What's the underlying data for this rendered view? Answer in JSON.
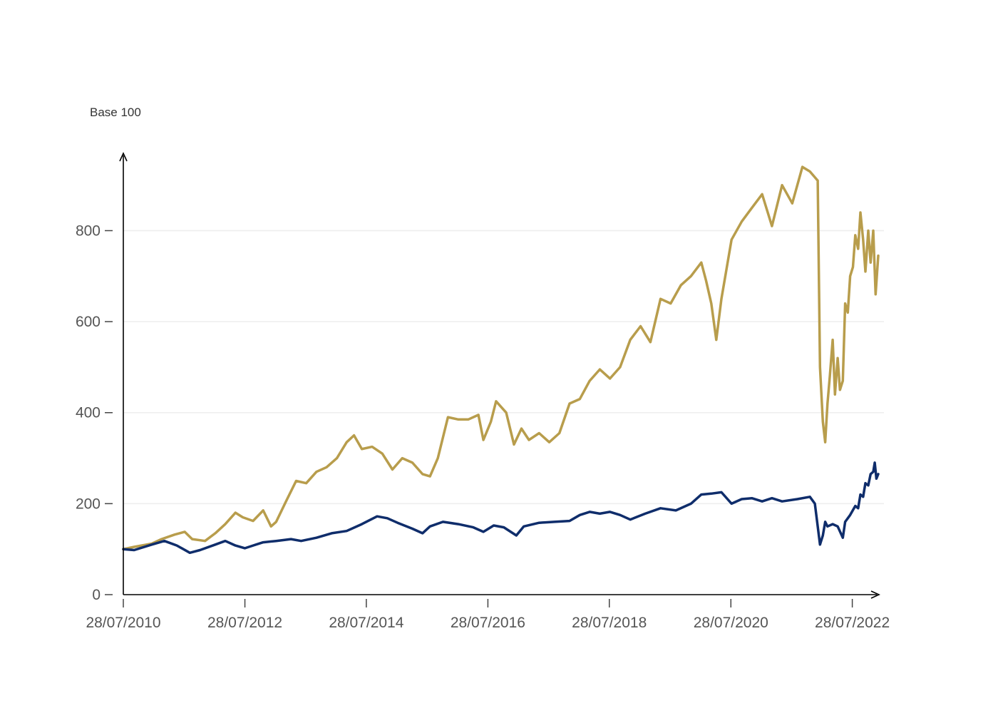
{
  "chart_data": {
    "type": "line",
    "title": "",
    "ylabel": "Base 100",
    "xlabel": "",
    "grid": true,
    "ylim": [
      0,
      970
    ],
    "yticks": [
      0,
      200,
      400,
      600,
      800
    ],
    "xlim": [
      "2010-07-28",
      "2022-12-31"
    ],
    "xticks": [
      {
        "date": "2010-07-28",
        "label": "28/07/2010"
      },
      {
        "date": "2012-07-28",
        "label": "28/07/2012"
      },
      {
        "date": "2014-07-28",
        "label": "28/07/2014"
      },
      {
        "date": "2016-07-28",
        "label": "28/07/2016"
      },
      {
        "date": "2018-07-28",
        "label": "28/07/2018"
      },
      {
        "date": "2020-07-28",
        "label": "28/07/2020"
      },
      {
        "date": "2022-07-28",
        "label": "28/07/2022"
      }
    ],
    "series": [
      {
        "color": "#b89d4c",
        "points": [
          [
            "2010-07-28",
            100
          ],
          [
            "2010-10-01",
            105
          ],
          [
            "2011-01-15",
            112
          ],
          [
            "2011-03-15",
            122
          ],
          [
            "2011-06-01",
            132
          ],
          [
            "2011-08-01",
            138
          ],
          [
            "2011-09-15",
            122
          ],
          [
            "2011-12-01",
            118
          ],
          [
            "2012-02-01",
            135
          ],
          [
            "2012-04-01",
            155
          ],
          [
            "2012-06-01",
            180
          ],
          [
            "2012-07-15",
            170
          ],
          [
            "2012-09-15",
            162
          ],
          [
            "2012-11-15",
            185
          ],
          [
            "2013-01-01",
            150
          ],
          [
            "2013-02-01",
            160
          ],
          [
            "2013-04-01",
            205
          ],
          [
            "2013-06-01",
            250
          ],
          [
            "2013-08-01",
            245
          ],
          [
            "2013-10-01",
            270
          ],
          [
            "2013-12-01",
            280
          ],
          [
            "2014-02-01",
            300
          ],
          [
            "2014-04-01",
            335
          ],
          [
            "2014-05-15",
            350
          ],
          [
            "2014-07-01",
            320
          ],
          [
            "2014-09-01",
            325
          ],
          [
            "2014-11-01",
            310
          ],
          [
            "2015-01-01",
            275
          ],
          [
            "2015-03-01",
            300
          ],
          [
            "2015-05-01",
            290
          ],
          [
            "2015-07-01",
            265
          ],
          [
            "2015-08-15",
            260
          ],
          [
            "2015-10-01",
            300
          ],
          [
            "2015-12-01",
            390
          ],
          [
            "2016-02-01",
            385
          ],
          [
            "2016-04-01",
            385
          ],
          [
            "2016-06-01",
            395
          ],
          [
            "2016-07-01",
            340
          ],
          [
            "2016-08-15",
            380
          ],
          [
            "2016-09-15",
            425
          ],
          [
            "2016-11-15",
            400
          ],
          [
            "2017-01-01",
            330
          ],
          [
            "2017-02-15",
            365
          ],
          [
            "2017-04-01",
            340
          ],
          [
            "2017-06-01",
            355
          ],
          [
            "2017-08-01",
            335
          ],
          [
            "2017-10-01",
            355
          ],
          [
            "2017-12-01",
            420
          ],
          [
            "2018-02-01",
            430
          ],
          [
            "2018-04-01",
            470
          ],
          [
            "2018-06-01",
            495
          ],
          [
            "2018-08-01",
            475
          ],
          [
            "2018-10-01",
            500
          ],
          [
            "2018-12-01",
            560
          ],
          [
            "2019-02-01",
            590
          ],
          [
            "2019-04-01",
            555
          ],
          [
            "2019-06-01",
            650
          ],
          [
            "2019-08-01",
            640
          ],
          [
            "2019-10-01",
            680
          ],
          [
            "2019-12-01",
            700
          ],
          [
            "2020-02-01",
            730
          ],
          [
            "2020-03-01",
            690
          ],
          [
            "2020-04-01",
            640
          ],
          [
            "2020-05-01",
            560
          ],
          [
            "2020-06-01",
            650
          ],
          [
            "2020-08-01",
            780
          ],
          [
            "2020-10-01",
            820
          ],
          [
            "2020-12-01",
            850
          ],
          [
            "2021-02-01",
            880
          ],
          [
            "2021-04-01",
            810
          ],
          [
            "2021-06-01",
            900
          ],
          [
            "2021-08-01",
            860
          ],
          [
            "2021-10-01",
            940
          ],
          [
            "2021-11-15",
            930
          ],
          [
            "2022-01-01",
            910
          ],
          [
            "2022-01-15",
            500
          ],
          [
            "2022-02-01",
            380
          ],
          [
            "2022-02-15",
            335
          ],
          [
            "2022-03-01",
            420
          ],
          [
            "2022-03-15",
            480
          ],
          [
            "2022-04-01",
            560
          ],
          [
            "2022-04-15",
            440
          ],
          [
            "2022-05-01",
            520
          ],
          [
            "2022-05-15",
            450
          ],
          [
            "2022-06-01",
            470
          ],
          [
            "2022-06-15",
            640
          ],
          [
            "2022-07-01",
            620
          ],
          [
            "2022-07-15",
            700
          ],
          [
            "2022-08-01",
            720
          ],
          [
            "2022-08-15",
            790
          ],
          [
            "2022-09-01",
            760
          ],
          [
            "2022-09-15",
            840
          ],
          [
            "2022-10-01",
            780
          ],
          [
            "2022-10-15",
            710
          ],
          [
            "2022-11-01",
            800
          ],
          [
            "2022-11-15",
            730
          ],
          [
            "2022-12-01",
            800
          ],
          [
            "2022-12-15",
            660
          ],
          [
            "2022-12-31",
            745
          ]
        ]
      },
      {
        "color": "#0f2d6b",
        "points": [
          [
            "2010-07-28",
            100
          ],
          [
            "2010-10-01",
            98
          ],
          [
            "2011-01-15",
            110
          ],
          [
            "2011-04-01",
            118
          ],
          [
            "2011-06-15",
            108
          ],
          [
            "2011-09-01",
            92
          ],
          [
            "2011-11-01",
            98
          ],
          [
            "2012-02-01",
            110
          ],
          [
            "2012-04-01",
            118
          ],
          [
            "2012-06-01",
            108
          ],
          [
            "2012-07-28",
            102
          ],
          [
            "2012-09-15",
            108
          ],
          [
            "2012-11-15",
            115
          ],
          [
            "2013-02-01",
            118
          ],
          [
            "2013-05-01",
            122
          ],
          [
            "2013-07-01",
            118
          ],
          [
            "2013-10-01",
            125
          ],
          [
            "2014-01-01",
            135
          ],
          [
            "2014-04-01",
            140
          ],
          [
            "2014-07-01",
            155
          ],
          [
            "2014-10-01",
            172
          ],
          [
            "2014-12-01",
            168
          ],
          [
            "2015-02-01",
            158
          ],
          [
            "2015-05-01",
            145
          ],
          [
            "2015-07-01",
            135
          ],
          [
            "2015-08-15",
            150
          ],
          [
            "2015-11-01",
            160
          ],
          [
            "2016-02-01",
            155
          ],
          [
            "2016-05-01",
            148
          ],
          [
            "2016-07-01",
            138
          ],
          [
            "2016-09-01",
            152
          ],
          [
            "2016-11-01",
            148
          ],
          [
            "2017-01-15",
            130
          ],
          [
            "2017-03-01",
            150
          ],
          [
            "2017-06-01",
            158
          ],
          [
            "2017-09-01",
            160
          ],
          [
            "2017-12-01",
            162
          ],
          [
            "2018-02-01",
            175
          ],
          [
            "2018-04-01",
            182
          ],
          [
            "2018-06-01",
            178
          ],
          [
            "2018-08-01",
            182
          ],
          [
            "2018-10-01",
            175
          ],
          [
            "2018-12-01",
            165
          ],
          [
            "2019-03-01",
            178
          ],
          [
            "2019-06-01",
            190
          ],
          [
            "2019-09-01",
            185
          ],
          [
            "2019-12-01",
            200
          ],
          [
            "2020-02-01",
            220
          ],
          [
            "2020-04-01",
            222
          ],
          [
            "2020-06-01",
            225
          ],
          [
            "2020-08-01",
            200
          ],
          [
            "2020-10-01",
            210
          ],
          [
            "2020-12-01",
            212
          ],
          [
            "2021-02-01",
            205
          ],
          [
            "2021-04-01",
            212
          ],
          [
            "2021-06-01",
            205
          ],
          [
            "2021-09-01",
            210
          ],
          [
            "2021-11-15",
            215
          ],
          [
            "2021-12-15",
            200
          ],
          [
            "2022-01-15",
            110
          ],
          [
            "2022-02-01",
            130
          ],
          [
            "2022-02-15",
            160
          ],
          [
            "2022-03-01",
            150
          ],
          [
            "2022-04-01",
            155
          ],
          [
            "2022-05-01",
            150
          ],
          [
            "2022-06-01",
            125
          ],
          [
            "2022-06-15",
            160
          ],
          [
            "2022-07-15",
            175
          ],
          [
            "2022-08-15",
            195
          ],
          [
            "2022-09-01",
            190
          ],
          [
            "2022-09-15",
            220
          ],
          [
            "2022-10-01",
            215
          ],
          [
            "2022-10-15",
            245
          ],
          [
            "2022-11-01",
            240
          ],
          [
            "2022-11-15",
            265
          ],
          [
            "2022-12-01",
            270
          ],
          [
            "2022-12-10",
            290
          ],
          [
            "2022-12-20",
            255
          ],
          [
            "2022-12-31",
            265
          ]
        ]
      }
    ]
  }
}
